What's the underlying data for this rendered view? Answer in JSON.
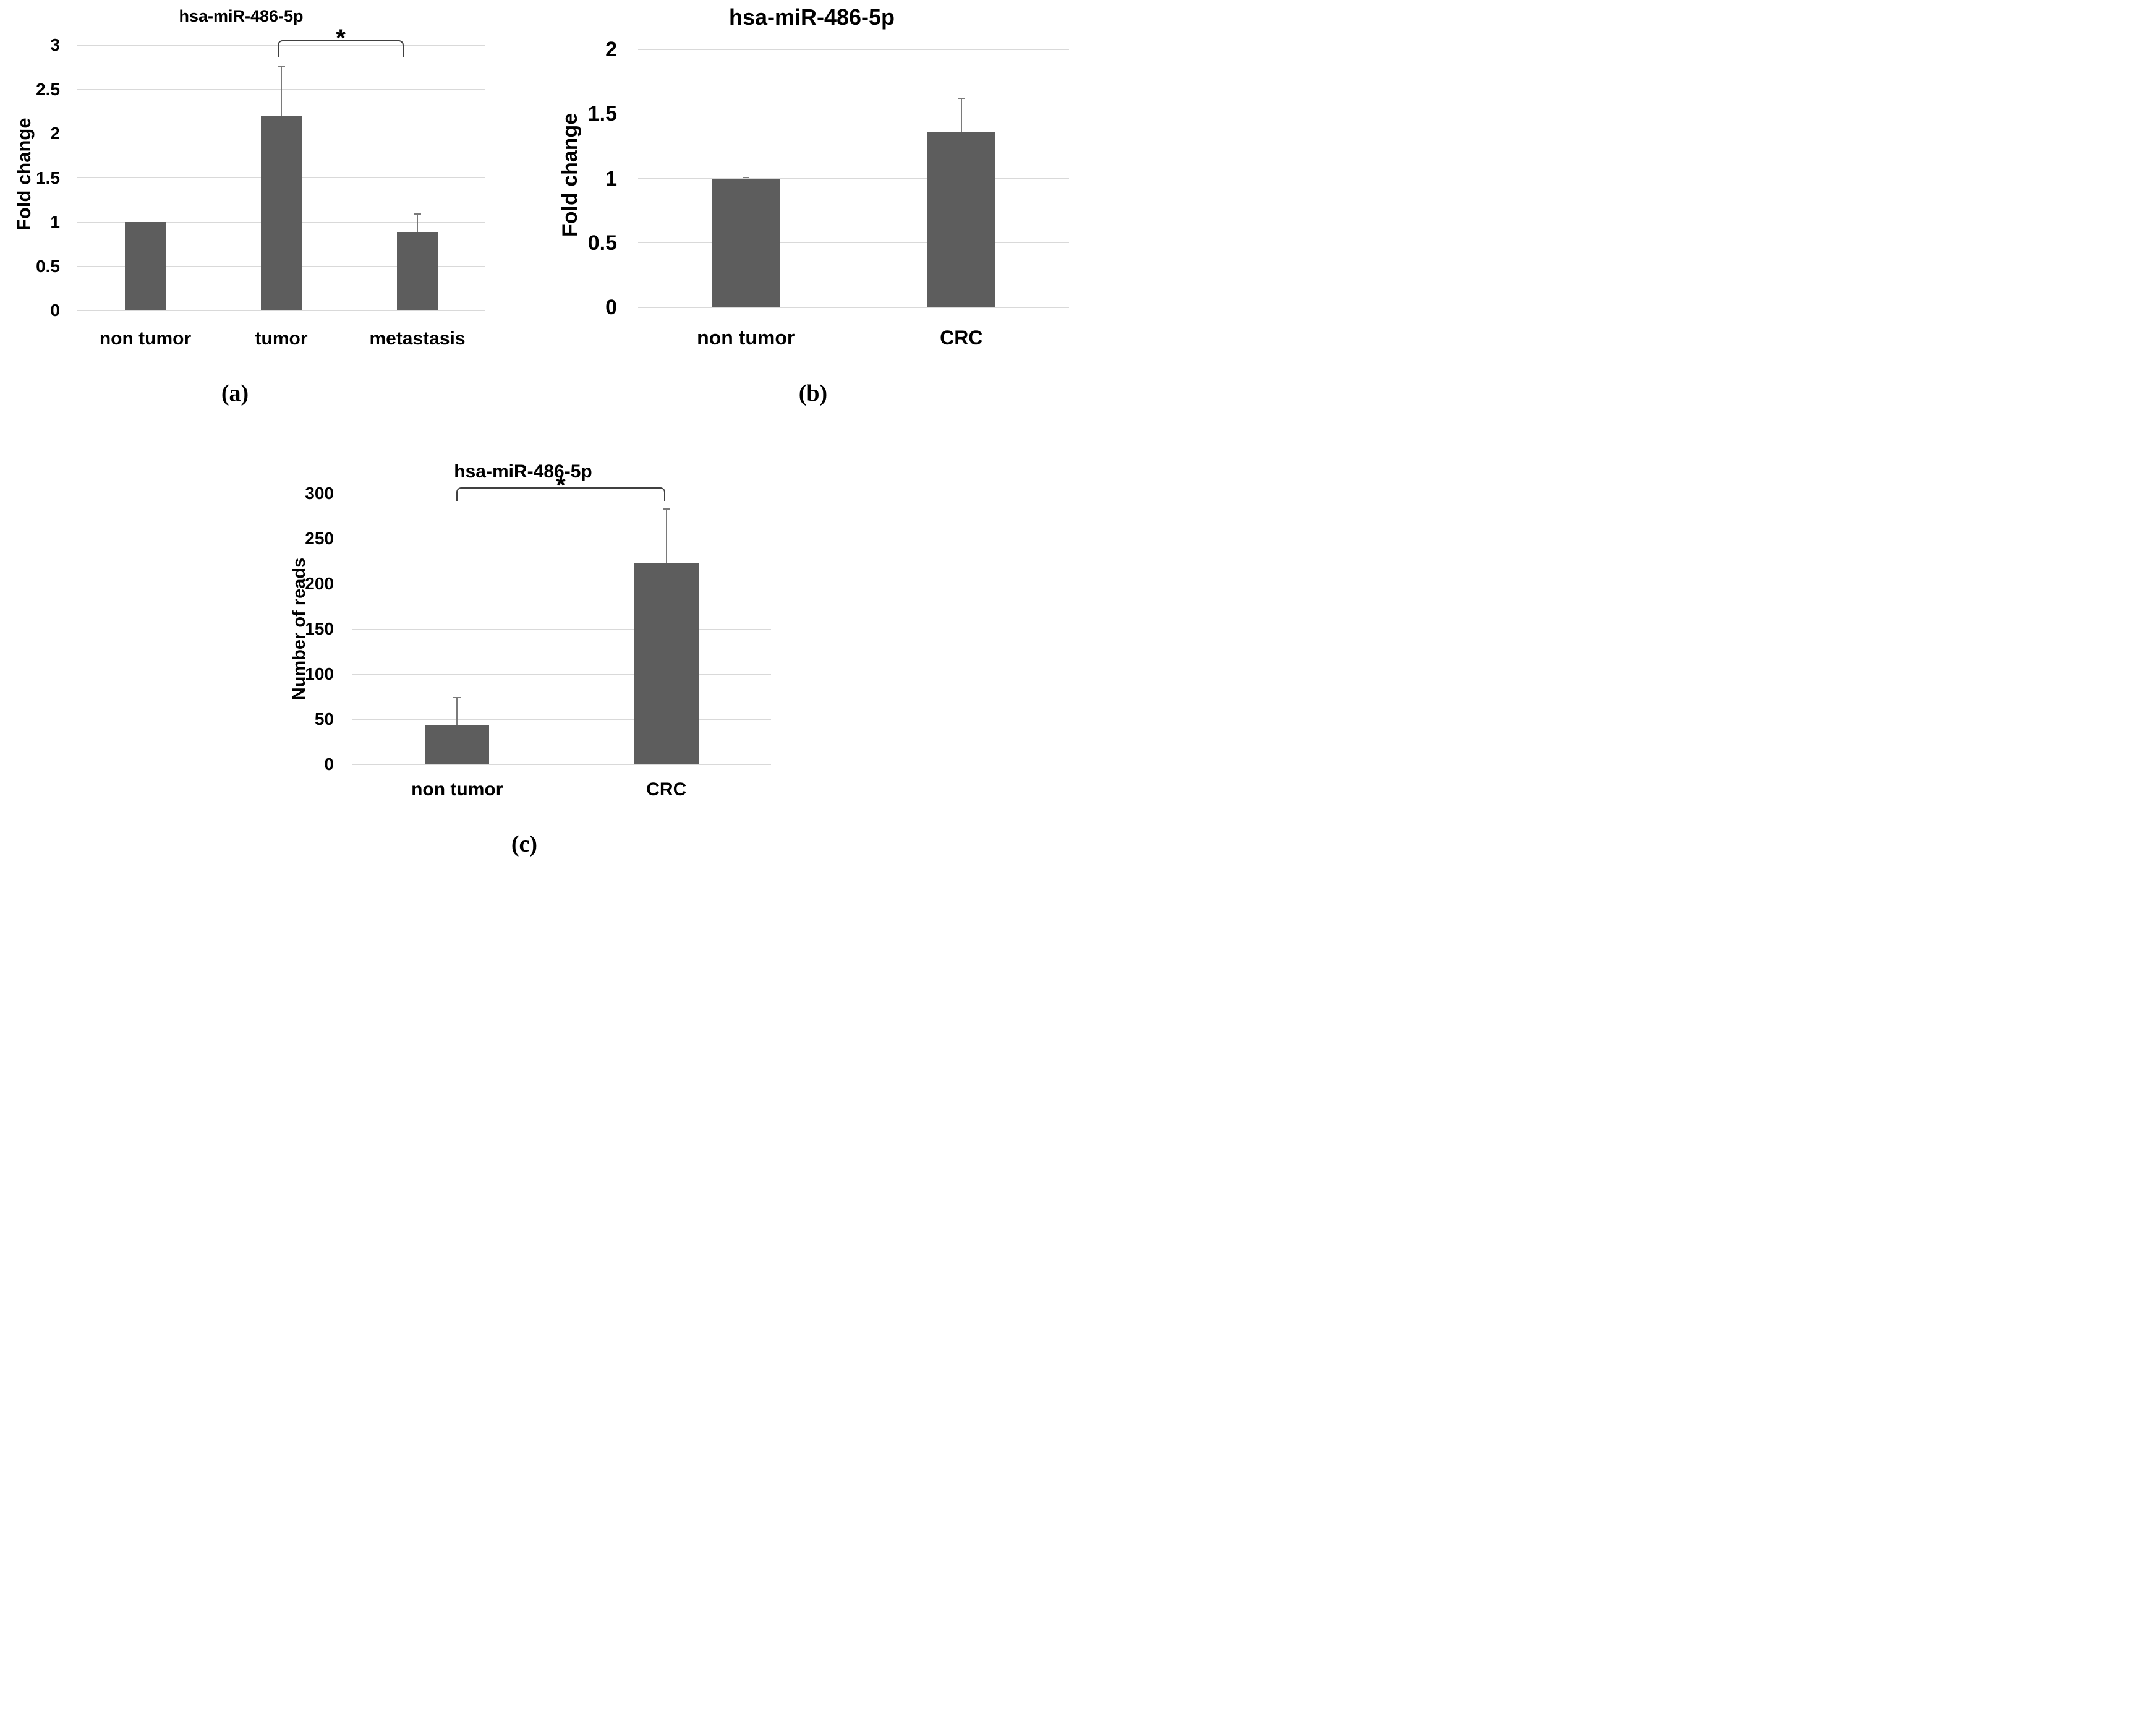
{
  "figure": {
    "background": "#ffffff",
    "panel_count": 3
  },
  "colors": {
    "bar_fill": "#5d5d5d",
    "gridline": "#d9d9d9",
    "error_bar": "#7a7a7a",
    "bracket": "#404040",
    "text": "#000000",
    "background": "#ffffff"
  },
  "chart_data": [
    {
      "id": "a",
      "type": "bar",
      "title": "hsa-miR-486-5p",
      "panel_label": "(a)",
      "xlabel": "",
      "ylabel": "Fold change",
      "categories": [
        "non tumor",
        "tumor",
        "metastasis"
      ],
      "values": [
        1.0,
        2.2,
        0.89
      ],
      "errors_up": [
        0,
        0.56,
        0.2
      ],
      "ylim": [
        0,
        3
      ],
      "ytick_step": 0.5,
      "yticks": [
        "0",
        "0.5",
        "1",
        "1.5",
        "2",
        "2.5",
        "3"
      ],
      "grid": true,
      "legend": "none",
      "significance": {
        "between": [
          "tumor",
          "metastasis"
        ],
        "label": "*"
      }
    },
    {
      "id": "b",
      "type": "bar",
      "title": "hsa-miR-486-5p",
      "panel_label": "(b)",
      "xlabel": "",
      "ylabel": "Fold change",
      "categories": [
        "non tumor",
        "CRC"
      ],
      "values": [
        1.0,
        1.36
      ],
      "errors_up": [
        0.005,
        0.26
      ],
      "ylim": [
        0,
        2
      ],
      "ytick_step": 0.5,
      "yticks": [
        "0",
        "0.5",
        "1",
        "1.5",
        "2"
      ],
      "grid": true,
      "legend": "none",
      "significance": null
    },
    {
      "id": "c",
      "type": "bar",
      "title": "hsa-miR-486-5p",
      "panel_label": "(c)",
      "xlabel": "",
      "ylabel": "Number of reads",
      "categories": [
        "non tumor",
        "CRC"
      ],
      "values": [
        44,
        223
      ],
      "errors_up": [
        30,
        60
      ],
      "ylim": [
        0,
        300
      ],
      "ytick_step": 50,
      "yticks": [
        "0",
        "50",
        "100",
        "150",
        "200",
        "250",
        "300"
      ],
      "grid": true,
      "legend": "none",
      "significance": {
        "between": [
          "non tumor",
          "CRC"
        ],
        "label": "*"
      }
    }
  ]
}
